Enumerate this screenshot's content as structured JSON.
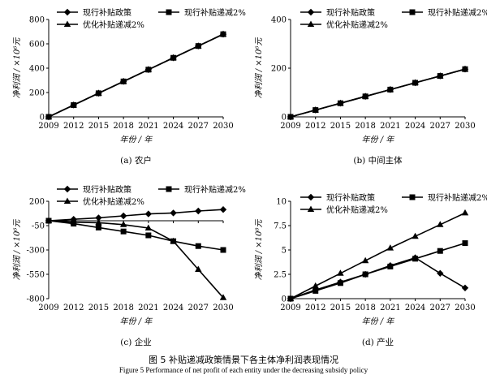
{
  "figure": {
    "caption_cn": "图 5   补贴递减政策情景下各主体净利润表现情况",
    "caption_en": "Figure 5    Performance of net profit of each entity under the decreasing subsidy policy"
  },
  "chart_data": [
    {
      "type": "line",
      "panel_label": "(a) 农户",
      "xlabel": "年份 / 年",
      "ylabel": "净利润 / ×10⁶元",
      "categories": [
        "2009",
        "2012",
        "2015",
        "2018",
        "2021",
        "2024",
        "2027",
        "2030"
      ],
      "ylim": [
        0,
        800
      ],
      "yticks": [
        0,
        200,
        400,
        600,
        800
      ],
      "ytick_labels": [
        "0",
        "200",
        "400",
        "600",
        "800"
      ],
      "series": [
        {
          "name": "现行补贴政策",
          "marker": "diamond",
          "values": [
            0,
            97,
            194,
            291,
            388,
            485,
            582,
            679
          ]
        },
        {
          "name": "现行补贴递减2%",
          "marker": "square",
          "values": [
            0,
            97,
            194,
            291,
            388,
            485,
            582,
            679
          ]
        },
        {
          "name": "优化补贴递减2%",
          "marker": "triangle",
          "values": [
            0,
            97,
            194,
            291,
            388,
            485,
            582,
            679
          ]
        }
      ]
    },
    {
      "type": "line",
      "panel_label": "(b) 中间主体",
      "xlabel": "年份 / 年",
      "ylabel": "净利润 / ×10⁶元",
      "categories": [
        "2009",
        "2012",
        "2015",
        "2018",
        "2021",
        "2024",
        "2027",
        "2030"
      ],
      "ylim": [
        0,
        400
      ],
      "yticks": [
        0,
        200,
        400
      ],
      "ytick_labels": [
        "0",
        "200",
        "400"
      ],
      "series": [
        {
          "name": "现行补贴政策",
          "marker": "diamond",
          "values": [
            0,
            28,
            56,
            84,
            112,
            140,
            168,
            196
          ]
        },
        {
          "name": "现行补贴递减2%",
          "marker": "square",
          "values": [
            0,
            28,
            56,
            84,
            112,
            140,
            168,
            196
          ]
        },
        {
          "name": "优化补贴递减2%",
          "marker": "triangle",
          "values": [
            0,
            28,
            56,
            84,
            112,
            140,
            168,
            196
          ]
        }
      ]
    },
    {
      "type": "line",
      "panel_label": "(c) 企业",
      "xlabel": "年份 / 年",
      "ylabel": "净利润 / ×10⁶元",
      "categories": [
        "2009",
        "2012",
        "2015",
        "2018",
        "2021",
        "2024",
        "2027",
        "2030"
      ],
      "ylim": [
        -800,
        200
      ],
      "yticks": [
        -800,
        -550,
        -300,
        -50,
        200
      ],
      "ytick_labels": [
        "-800",
        "-550",
        "-300",
        "-50",
        "200"
      ],
      "series": [
        {
          "name": "现行补贴政策",
          "marker": "diamond",
          "values": [
            0,
            15,
            30,
            50,
            70,
            80,
            100,
            115
          ]
        },
        {
          "name": "现行补贴递减2%",
          "marker": "square",
          "values": [
            0,
            -30,
            -70,
            -110,
            -150,
            -210,
            -260,
            -300
          ]
        },
        {
          "name": "优化补贴递减2%",
          "marker": "triangle",
          "values": [
            0,
            -15,
            -20,
            -40,
            -75,
            -210,
            -500,
            -790
          ]
        }
      ]
    },
    {
      "type": "line",
      "panel_label": "(d) 产业",
      "xlabel": "年份 / 年",
      "ylabel": "净利润 / ×10⁸元",
      "categories": [
        "2009",
        "2012",
        "2015",
        "2018",
        "2021",
        "2024",
        "2027",
        "2030"
      ],
      "ylim": [
        0,
        10
      ],
      "yticks": [
        0,
        2.5,
        5,
        7.5,
        10
      ],
      "ytick_labels": [
        "0",
        "2.5",
        "5",
        "7.5",
        "10"
      ],
      "series": [
        {
          "name": "现行补贴政策",
          "marker": "diamond",
          "values": [
            0,
            0.9,
            1.7,
            2.5,
            3.4,
            4.2,
            2.6,
            1.1
          ]
        },
        {
          "name": "现行补贴递减2%",
          "marker": "square",
          "values": [
            0,
            0.8,
            1.6,
            2.5,
            3.3,
            4.1,
            4.9,
            5.7
          ]
        },
        {
          "name": "优化补贴递减2%",
          "marker": "triangle",
          "values": [
            0,
            1.3,
            2.6,
            3.9,
            5.2,
            6.4,
            7.6,
            8.8
          ]
        }
      ]
    }
  ]
}
